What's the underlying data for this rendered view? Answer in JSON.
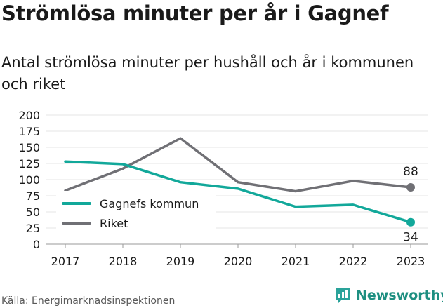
{
  "title": "Strömlösa minuter per år i Gagnef",
  "subtitle": "Antal strömlösa minuter per hushåll och år i kommunen och riket",
  "source": "Källa: Energimarknadsinspektionen",
  "brand": "Newsworthy",
  "colors": {
    "gagnef": "#12a89a",
    "riket": "#707075",
    "brand": "#1e8f81"
  },
  "chart_data": {
    "type": "line",
    "title": "Strömlösa minuter per år i Gagnef",
    "subtitle": "Antal strömlösa minuter per hushåll och år i kommunen och riket",
    "xlabel": "",
    "ylabel": "",
    "x": [
      2017,
      2018,
      2019,
      2020,
      2021,
      2022,
      2023
    ],
    "ylim": [
      0,
      200
    ],
    "yticks": [
      0,
      25,
      50,
      75,
      100,
      125,
      150,
      175,
      200
    ],
    "grid": true,
    "legend_position": "bottom-left",
    "series": [
      {
        "name": "Gagnefs kommun",
        "values": [
          128,
          124,
          96,
          86,
          58,
          61,
          34
        ]
      },
      {
        "name": "Riket",
        "values": [
          83,
          117,
          164,
          96,
          82,
          98,
          88
        ]
      }
    ],
    "end_labels": [
      "34",
      "88"
    ]
  }
}
